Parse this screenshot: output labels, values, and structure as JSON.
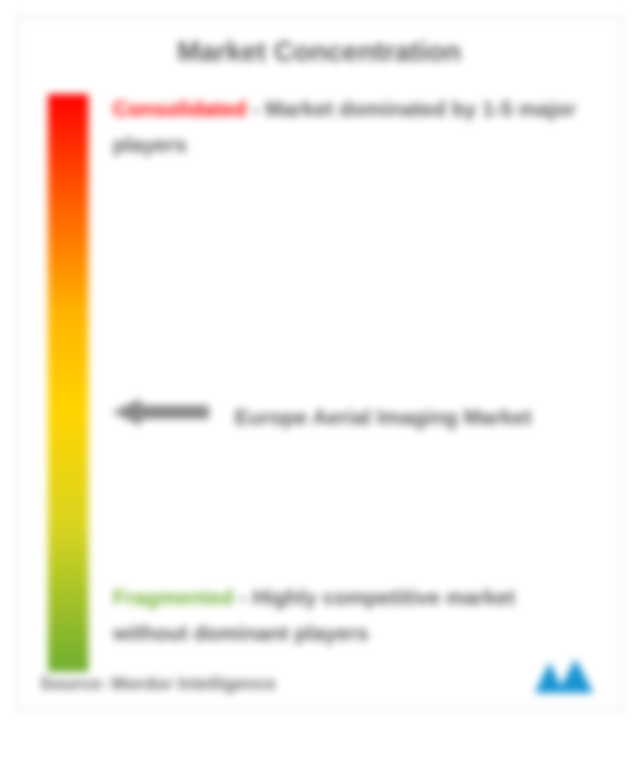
{
  "title": "Market Concentration",
  "gradient": {
    "stops": [
      {
        "pct": 0,
        "color": "#ff0000"
      },
      {
        "pct": 18,
        "color": "#ff5a00"
      },
      {
        "pct": 38,
        "color": "#ffb400"
      },
      {
        "pct": 55,
        "color": "#ffd400"
      },
      {
        "pct": 75,
        "color": "#d8d420"
      },
      {
        "pct": 100,
        "color": "#6fae2f"
      }
    ]
  },
  "consolidated": {
    "lead": "Consolidated",
    "lead_color": "#ff0000",
    "rest": "- Market dominated by 1-5 major players"
  },
  "fragmented": {
    "lead": "Fragmented",
    "lead_color": "#6fae2f",
    "rest": "- Highly competitive market without dominant players"
  },
  "pointer": {
    "label": "Europe Aerial Imaging Market",
    "position_pct": 55,
    "arrow_fill": "#8a8a8a",
    "arrow_stroke": "#8a8a8a"
  },
  "source": "Source: Mordor Intelligence",
  "logo_color": "#1893d4",
  "card": {
    "bg": "#ffffff",
    "border": "#d0d0d0",
    "text_color": "#5a5a5a",
    "title_fontsize": 34,
    "body_fontsize": 26
  }
}
